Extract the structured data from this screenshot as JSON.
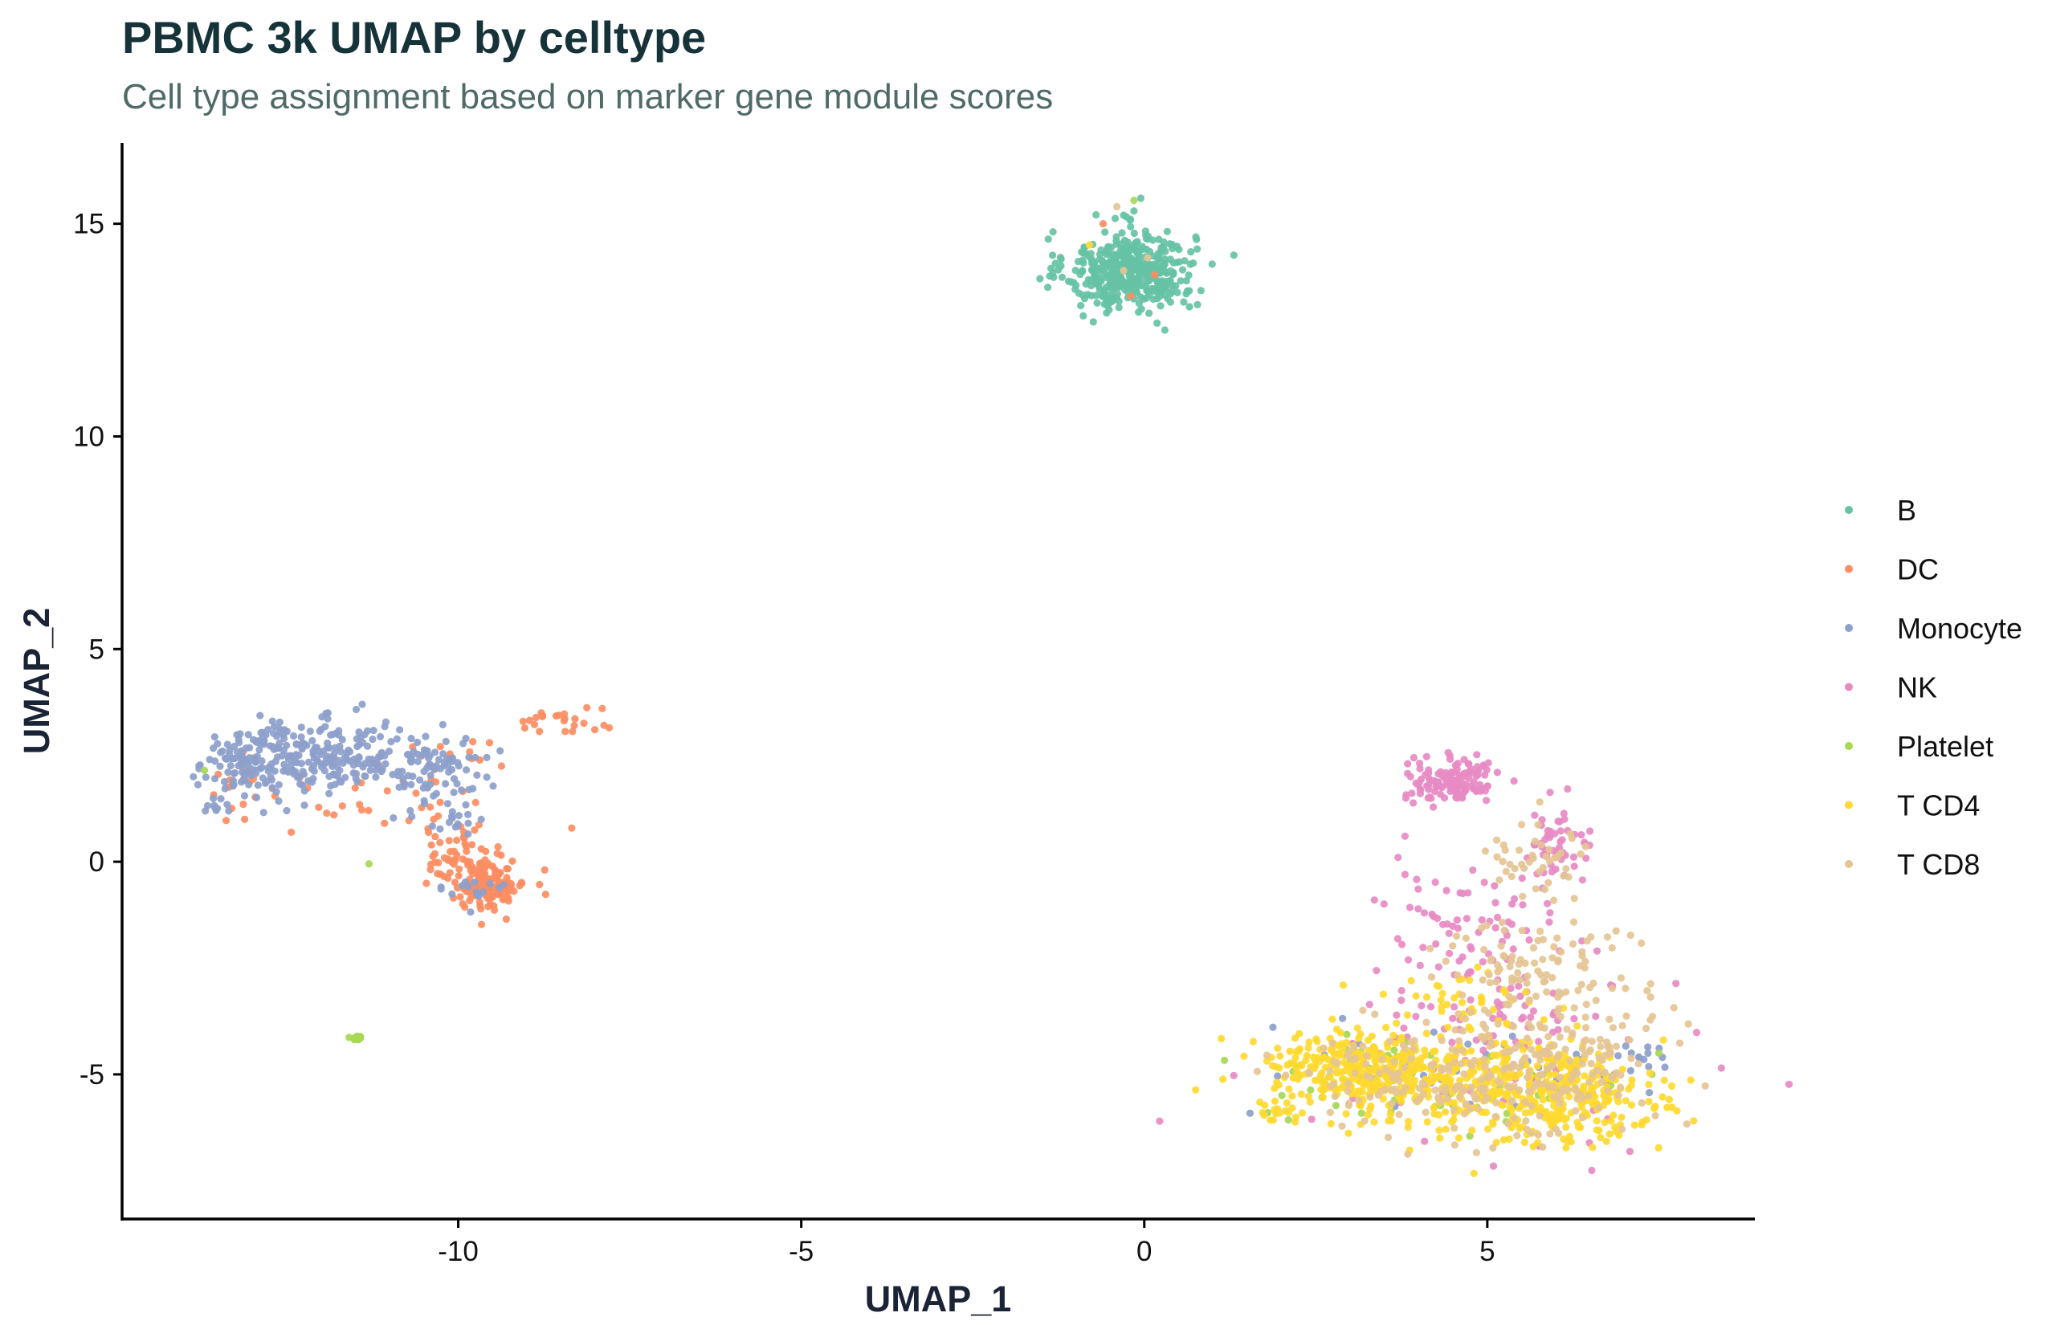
{
  "chart_data": {
    "type": "scatter",
    "title": "PBMC 3k UMAP by celltype",
    "subtitle": "Cell type assignment based on marker gene module scores",
    "xlabel": "UMAP_1",
    "ylabel": "UMAP_2",
    "xlim": [
      -14.9,
      8.9
    ],
    "ylim": [
      -8.4,
      16.9
    ],
    "x_ticks": [
      -10,
      -5,
      0,
      5
    ],
    "x_tick_labels": [
      "-10",
      "-5",
      "0",
      "5"
    ],
    "y_ticks": [
      -5,
      0,
      5,
      10,
      15
    ],
    "y_tick_labels": [
      "-5",
      "0",
      "5",
      "10",
      "15"
    ],
    "grid": false,
    "legend_position": "right",
    "series": [
      {
        "name": "B",
        "color": "#66C2A5",
        "clusters": [
          {
            "center": [
              -0.2,
              13.9
            ],
            "spread": [
              0.55,
              0.55
            ],
            "count": 430
          }
        ],
        "points": [
          [
            -0.05,
            15.6
          ],
          [
            -0.15,
            15.3
          ],
          [
            -0.3,
            15.2
          ],
          [
            0.3,
            12.5
          ]
        ]
      },
      {
        "name": "DC",
        "color": "#FC8D62",
        "clusters": [
          {
            "center": [
              -9.6,
              -0.5
            ],
            "spread": [
              0.35,
              0.35
            ],
            "count": 150
          },
          {
            "center": [
              -10.0,
              0.3
            ],
            "spread": [
              0.4,
              0.35
            ],
            "count": 40
          },
          {
            "center": [
              -8.6,
              3.3
            ],
            "spread": [
              0.4,
              0.15
            ],
            "count": 22
          },
          {
            "center": [
              -11.3,
              1.5
            ],
            "spread": [
              1.5,
              0.7
            ],
            "count": 40
          },
          {
            "center": [
              -12.8,
              1.9
            ],
            "spread": [
              0.5,
              0.4
            ],
            "count": 12
          },
          {
            "center": [
              -9.8,
              2.6
            ],
            "spread": [
              0.3,
              0.2
            ],
            "count": 6
          }
        ],
        "points": [
          [
            -7.9,
            3.6
          ],
          [
            -7.8,
            3.15
          ],
          [
            -9.3,
            -1.35
          ],
          [
            -0.2,
            13.3
          ],
          [
            0.15,
            13.8
          ],
          [
            -0.6,
            15.0
          ]
        ]
      },
      {
        "name": "Monocyte",
        "color": "#8DA0CB",
        "clusters": [
          {
            "center": [
              -11.8,
              2.5
            ],
            "spread": [
              1.0,
              0.45
            ],
            "count": 230
          },
          {
            "center": [
              -13.0,
              2.3
            ],
            "spread": [
              0.5,
              0.5
            ],
            "count": 100
          },
          {
            "center": [
              -10.2,
              2.0
            ],
            "spread": [
              0.4,
              0.5
            ],
            "count": 60
          },
          {
            "center": [
              -13.6,
              1.3
            ],
            "spread": [
              0.15,
              0.1
            ],
            "count": 10
          },
          {
            "center": [
              -10.0,
              0.9
            ],
            "spread": [
              0.2,
              0.3
            ],
            "count": 12
          },
          {
            "center": [
              -9.8,
              -0.7
            ],
            "spread": [
              0.3,
              0.25
            ],
            "count": 15
          },
          {
            "center": [
              4.7,
              -4.9
            ],
            "spread": [
              1.5,
              0.7
            ],
            "count": 45
          },
          {
            "center": [
              7.3,
              -4.5
            ],
            "spread": [
              0.3,
              0.3
            ],
            "count": 12
          }
        ],
        "points": [
          [
            -11.4,
            3.7
          ],
          [
            -11.9,
            3.5
          ],
          [
            -12.5,
            1.2
          ]
        ]
      },
      {
        "name": "NK",
        "color": "#E78AC3",
        "clusters": [
          {
            "center": [
              4.5,
              1.9
            ],
            "spread": [
              0.4,
              0.3
            ],
            "count": 130
          },
          {
            "center": [
              6.0,
              0.3
            ],
            "spread": [
              0.3,
              0.5
            ],
            "count": 55
          },
          {
            "center": [
              4.7,
              -1.6
            ],
            "spread": [
              0.8,
              0.8
            ],
            "count": 70
          },
          {
            "center": [
              5.3,
              -3.6
            ],
            "spread": [
              1.2,
              0.6
            ],
            "count": 60
          },
          {
            "center": [
              5.5,
              -5.5
            ],
            "spread": [
              1.5,
              0.8
            ],
            "count": 35
          }
        ],
        "points": [
          [
            3.8,
            0.6
          ],
          [
            3.7,
            0.1
          ],
          [
            3.8,
            -0.3
          ],
          [
            6.6,
            -2.1
          ],
          [
            6.8,
            -2.9
          ]
        ]
      },
      {
        "name": "Platelet",
        "color": "#A6D854",
        "clusters": [
          {
            "center": [
              -11.5,
              -4.15
            ],
            "spread": [
              0.05,
              0.04
            ],
            "count": 18
          },
          {
            "center": [
              3.4,
              -5.0
            ],
            "spread": [
              1.0,
              0.6
            ],
            "count": 30
          },
          {
            "center": [
              5.0,
              -5.4
            ],
            "spread": [
              1.5,
              0.6
            ],
            "count": 22
          }
        ],
        "points": [
          [
            -11.3,
            -0.05
          ],
          [
            -13.7,
            2.15
          ],
          [
            -0.15,
            15.55
          ],
          [
            1.8,
            -5.9
          ],
          [
            7.5,
            -4.5
          ],
          [
            7.4,
            -5.0
          ]
        ]
      },
      {
        "name": "T CD4",
        "color": "#FFD92F",
        "clusters": [
          {
            "center": [
              3.2,
              -4.9
            ],
            "spread": [
              0.9,
              0.55
            ],
            "count": 330
          },
          {
            "center": [
              5.3,
              -5.4
            ],
            "spread": [
              1.2,
              0.7
            ],
            "count": 330
          },
          {
            "center": [
              6.6,
              -5.6
            ],
            "spread": [
              0.6,
              0.6
            ],
            "count": 100
          },
          {
            "center": [
              4.5,
              -3.3
            ],
            "spread": [
              0.6,
              0.4
            ],
            "count": 40
          },
          {
            "center": [
              1.9,
              -5.9
            ],
            "spread": [
              0.2,
              0.15
            ],
            "count": 15
          }
        ],
        "points": [
          [
            2.9,
            -2.9
          ],
          [
            -0.8,
            14.5
          ]
        ]
      },
      {
        "name": "T CD8",
        "color": "#E5C494",
        "clusters": [
          {
            "center": [
              5.3,
              -5.0
            ],
            "spread": [
              1.3,
              0.9
            ],
            "count": 220
          },
          {
            "center": [
              5.6,
              -2.5
            ],
            "spread": [
              0.8,
              0.9
            ],
            "count": 100
          },
          {
            "center": [
              5.7,
              0.0
            ],
            "spread": [
              0.5,
              0.6
            ],
            "count": 45
          },
          {
            "center": [
              6.4,
              -4.2
            ],
            "spread": [
              0.5,
              0.6
            ],
            "count": 40
          },
          {
            "center": [
              3.5,
              -5.0
            ],
            "spread": [
              0.8,
              0.5
            ],
            "count": 40
          }
        ],
        "points": [
          [
            -0.4,
            15.4
          ],
          [
            0.05,
            14.2
          ],
          [
            -0.3,
            13.9
          ]
        ]
      }
    ]
  }
}
